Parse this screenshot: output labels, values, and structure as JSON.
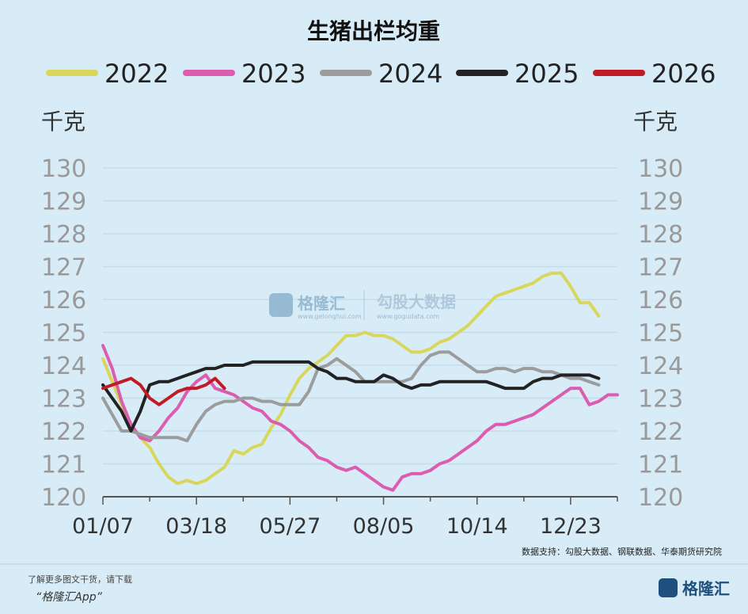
{
  "chart_data": {
    "type": "line",
    "title": "生猪出栏均重",
    "unit_left": "千克",
    "unit_right": "千克",
    "ylim": [
      120,
      130
    ],
    "yticks": [
      130,
      129,
      128,
      127,
      126,
      125,
      124,
      123,
      122,
      121,
      120
    ],
    "xticks": [
      "01/07",
      "03/18",
      "05/27",
      "08/05",
      "10/14",
      "12/23"
    ],
    "x_weeks": [
      1,
      11,
      21,
      31,
      41,
      51
    ],
    "grid": true,
    "legend_position": "top",
    "series": [
      {
        "name": "2022",
        "color": "#d8d65b",
        "points": [
          [
            1,
            124.2
          ],
          [
            2,
            123.5
          ],
          [
            3,
            122.8
          ],
          [
            4,
            122.2
          ],
          [
            5,
            121.8
          ],
          [
            6,
            121.5
          ],
          [
            7,
            121.0
          ],
          [
            8,
            120.6
          ],
          [
            9,
            120.4
          ],
          [
            10,
            120.5
          ],
          [
            11,
            120.4
          ],
          [
            12,
            120.5
          ],
          [
            13,
            120.7
          ],
          [
            14,
            120.9
          ],
          [
            15,
            121.4
          ],
          [
            16,
            121.3
          ],
          [
            17,
            121.5
          ],
          [
            18,
            121.6
          ],
          [
            19,
            122.1
          ],
          [
            20,
            122.5
          ],
          [
            21,
            123.1
          ],
          [
            22,
            123.6
          ],
          [
            23,
            123.9
          ],
          [
            24,
            124.1
          ],
          [
            25,
            124.3
          ],
          [
            26,
            124.6
          ],
          [
            27,
            124.9
          ],
          [
            28,
            124.9
          ],
          [
            29,
            125.0
          ],
          [
            30,
            124.9
          ],
          [
            31,
            124.9
          ],
          [
            32,
            124.8
          ],
          [
            33,
            124.6
          ],
          [
            34,
            124.4
          ],
          [
            35,
            124.4
          ],
          [
            36,
            124.5
          ],
          [
            37,
            124.7
          ],
          [
            38,
            124.8
          ],
          [
            39,
            125.0
          ],
          [
            40,
            125.2
          ],
          [
            41,
            125.5
          ],
          [
            42,
            125.8
          ],
          [
            43,
            126.1
          ],
          [
            44,
            126.2
          ],
          [
            45,
            126.3
          ],
          [
            46,
            126.4
          ],
          [
            47,
            126.5
          ],
          [
            48,
            126.7
          ],
          [
            49,
            126.8
          ],
          [
            50,
            126.8
          ],
          [
            51,
            126.4
          ],
          [
            52,
            125.9
          ],
          [
            53,
            125.9
          ],
          [
            54,
            125.5
          ]
        ]
      },
      {
        "name": "2023",
        "color": "#dc5cb0",
        "points": [
          [
            1,
            124.6
          ],
          [
            2,
            123.9
          ],
          [
            3,
            122.9
          ],
          [
            4,
            122.2
          ],
          [
            5,
            121.8
          ],
          [
            6,
            121.7
          ],
          [
            7,
            122.0
          ],
          [
            8,
            122.4
          ],
          [
            9,
            122.7
          ],
          [
            10,
            123.2
          ],
          [
            11,
            123.5
          ],
          [
            12,
            123.7
          ],
          [
            13,
            123.3
          ],
          [
            14,
            123.2
          ],
          [
            15,
            123.1
          ],
          [
            16,
            122.9
          ],
          [
            17,
            122.7
          ],
          [
            18,
            122.6
          ],
          [
            19,
            122.3
          ],
          [
            20,
            122.2
          ],
          [
            21,
            122.0
          ],
          [
            22,
            121.7
          ],
          [
            23,
            121.5
          ],
          [
            24,
            121.2
          ],
          [
            25,
            121.1
          ],
          [
            26,
            120.9
          ],
          [
            27,
            120.8
          ],
          [
            28,
            120.9
          ],
          [
            29,
            120.7
          ],
          [
            30,
            120.5
          ],
          [
            31,
            120.3
          ],
          [
            32,
            120.2
          ],
          [
            33,
            120.6
          ],
          [
            34,
            120.7
          ],
          [
            35,
            120.7
          ],
          [
            36,
            120.8
          ],
          [
            37,
            121.0
          ],
          [
            38,
            121.1
          ],
          [
            39,
            121.3
          ],
          [
            40,
            121.5
          ],
          [
            41,
            121.7
          ],
          [
            42,
            122.0
          ],
          [
            43,
            122.2
          ],
          [
            44,
            122.2
          ],
          [
            45,
            122.3
          ],
          [
            46,
            122.4
          ],
          [
            47,
            122.5
          ],
          [
            48,
            122.7
          ],
          [
            49,
            122.9
          ],
          [
            50,
            123.1
          ],
          [
            51,
            123.3
          ],
          [
            52,
            123.3
          ],
          [
            53,
            122.8
          ],
          [
            54,
            122.9
          ],
          [
            55,
            123.1
          ],
          [
            56,
            123.1
          ]
        ]
      },
      {
        "name": "2024",
        "color": "#9c9c9c",
        "points": [
          [
            1,
            123.0
          ],
          [
            2,
            122.5
          ],
          [
            3,
            122.0
          ],
          [
            4,
            122.0
          ],
          [
            5,
            121.9
          ],
          [
            6,
            121.8
          ],
          [
            7,
            121.8
          ],
          [
            8,
            121.8
          ],
          [
            9,
            121.8
          ],
          [
            10,
            121.7
          ],
          [
            11,
            122.2
          ],
          [
            12,
            122.6
          ],
          [
            13,
            122.8
          ],
          [
            14,
            122.9
          ],
          [
            15,
            122.9
          ],
          [
            16,
            123.0
          ],
          [
            17,
            123.0
          ],
          [
            18,
            122.9
          ],
          [
            19,
            122.9
          ],
          [
            20,
            122.8
          ],
          [
            21,
            122.8
          ],
          [
            22,
            122.8
          ],
          [
            23,
            123.2
          ],
          [
            24,
            123.9
          ],
          [
            25,
            124.0
          ],
          [
            26,
            124.2
          ],
          [
            27,
            124.0
          ],
          [
            28,
            123.8
          ],
          [
            29,
            123.5
          ],
          [
            30,
            123.5
          ],
          [
            31,
            123.5
          ],
          [
            32,
            123.5
          ],
          [
            33,
            123.5
          ],
          [
            34,
            123.6
          ],
          [
            35,
            124.0
          ],
          [
            36,
            124.3
          ],
          [
            37,
            124.4
          ],
          [
            38,
            124.4
          ],
          [
            39,
            124.2
          ],
          [
            40,
            124.0
          ],
          [
            41,
            123.8
          ],
          [
            42,
            123.8
          ],
          [
            43,
            123.9
          ],
          [
            44,
            123.9
          ],
          [
            45,
            123.8
          ],
          [
            46,
            123.9
          ],
          [
            47,
            123.9
          ],
          [
            48,
            123.8
          ],
          [
            49,
            123.8
          ],
          [
            50,
            123.7
          ],
          [
            51,
            123.6
          ],
          [
            52,
            123.6
          ],
          [
            53,
            123.5
          ],
          [
            54,
            123.4
          ]
        ]
      },
      {
        "name": "2025",
        "color": "#222222",
        "points": [
          [
            1,
            123.4
          ],
          [
            2,
            123.0
          ],
          [
            3,
            122.6
          ],
          [
            4,
            122.0
          ],
          [
            5,
            122.6
          ],
          [
            6,
            123.4
          ],
          [
            7,
            123.5
          ],
          [
            8,
            123.5
          ],
          [
            9,
            123.6
          ],
          [
            10,
            123.7
          ],
          [
            11,
            123.8
          ],
          [
            12,
            123.9
          ],
          [
            13,
            123.9
          ],
          [
            14,
            124.0
          ],
          [
            15,
            124.0
          ],
          [
            16,
            124.0
          ],
          [
            17,
            124.1
          ],
          [
            18,
            124.1
          ],
          [
            19,
            124.1
          ],
          [
            20,
            124.1
          ],
          [
            21,
            124.1
          ],
          [
            22,
            124.1
          ],
          [
            23,
            124.1
          ],
          [
            24,
            123.9
          ],
          [
            25,
            123.8
          ],
          [
            26,
            123.6
          ],
          [
            27,
            123.6
          ],
          [
            28,
            123.5
          ],
          [
            29,
            123.5
          ],
          [
            30,
            123.5
          ],
          [
            31,
            123.7
          ],
          [
            32,
            123.6
          ],
          [
            33,
            123.4
          ],
          [
            34,
            123.3
          ],
          [
            35,
            123.4
          ],
          [
            36,
            123.4
          ],
          [
            37,
            123.5
          ],
          [
            38,
            123.5
          ],
          [
            39,
            123.5
          ],
          [
            40,
            123.5
          ],
          [
            41,
            123.5
          ],
          [
            42,
            123.5
          ],
          [
            43,
            123.4
          ],
          [
            44,
            123.3
          ],
          [
            45,
            123.3
          ],
          [
            46,
            123.3
          ],
          [
            47,
            123.5
          ],
          [
            48,
            123.6
          ],
          [
            49,
            123.6
          ],
          [
            50,
            123.7
          ],
          [
            51,
            123.7
          ],
          [
            52,
            123.7
          ],
          [
            53,
            123.7
          ],
          [
            54,
            123.6
          ]
        ]
      },
      {
        "name": "2026",
        "color": "#c01c28",
        "points": [
          [
            1,
            123.3
          ],
          [
            2,
            123.4
          ],
          [
            3,
            123.5
          ],
          [
            4,
            123.6
          ],
          [
            5,
            123.4
          ],
          [
            6,
            123.0
          ],
          [
            7,
            122.8
          ],
          [
            8,
            123.0
          ],
          [
            9,
            123.2
          ],
          [
            10,
            123.3
          ],
          [
            11,
            123.3
          ],
          [
            12,
            123.4
          ],
          [
            13,
            123.6
          ],
          [
            14,
            123.3
          ]
        ]
      }
    ]
  },
  "source_text": "数据支持：勾股大数据、钢联数据、华泰期货研究院",
  "watermark": {
    "brand_cn": "格隆汇",
    "brand_url": "www.gelonghui.com",
    "partner_cn": "勾股大数据",
    "partner_url": "www.gogudata.com"
  },
  "footer": {
    "line1": "了解更多图文干货，请下载",
    "line2": "“格隆汇App”",
    "brand": "格隆汇"
  }
}
